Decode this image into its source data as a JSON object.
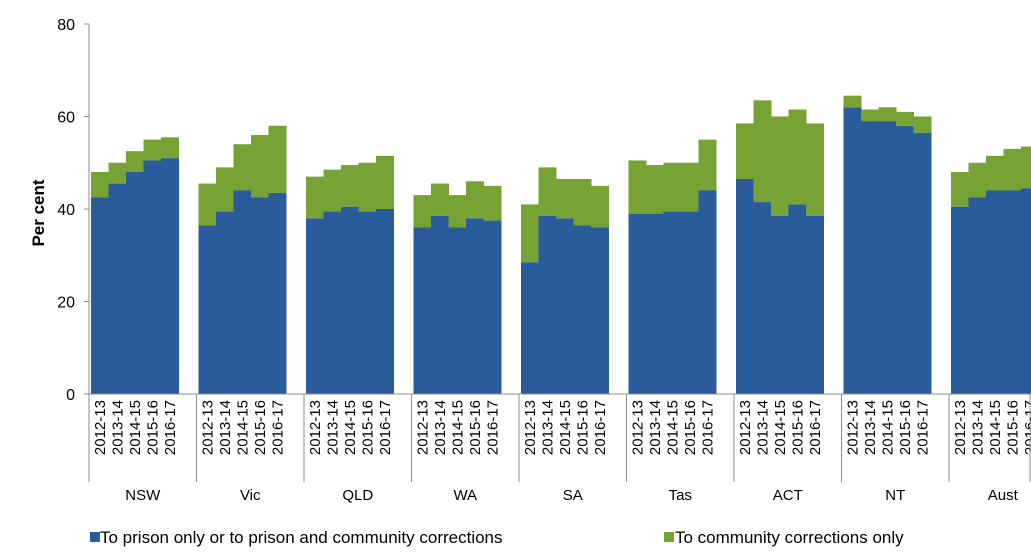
{
  "chart_data": {
    "type": "bar",
    "stacked": true,
    "ylabel": "Per cent",
    "ylim": [
      0,
      80
    ],
    "yticks": [
      0,
      20,
      40,
      60,
      80
    ],
    "grid": false,
    "legend_position": "bottom",
    "groups": [
      "NSW",
      "Vic",
      "QLD",
      "WA",
      "SA",
      "Tas",
      "ACT",
      "NT",
      "Aust"
    ],
    "categories": [
      "2012-13",
      "2013-14",
      "2014-15",
      "2015-16",
      "2016-17"
    ],
    "colors": {
      "prison": "#2a5b9b",
      "community": "#76a333"
    },
    "series": [
      {
        "name": "To prison only or to prison and community corrections",
        "color": "#2a5b9b",
        "values": [
          [
            42.5,
            45.5,
            48.0,
            50.5,
            51.0
          ],
          [
            36.5,
            39.5,
            44.0,
            42.5,
            43.5
          ],
          [
            38.0,
            39.5,
            40.5,
            39.5,
            40.0
          ],
          [
            36.0,
            38.5,
            36.0,
            38.0,
            37.5
          ],
          [
            28.5,
            38.5,
            38.0,
            36.5,
            36.0
          ],
          [
            39.0,
            39.0,
            39.5,
            39.5,
            44.0
          ],
          [
            46.5,
            41.5,
            38.5,
            41.0,
            38.5
          ],
          [
            62.0,
            59.0,
            59.0,
            58.0,
            56.5
          ],
          [
            40.5,
            42.5,
            44.0,
            44.0,
            44.5
          ]
        ]
      },
      {
        "name": "To community corrections only",
        "color": "#76a333",
        "values": [
          [
            5.5,
            4.5,
            4.5,
            4.5,
            4.5
          ],
          [
            9.0,
            9.5,
            10.0,
            13.5,
            14.5
          ],
          [
            9.0,
            9.0,
            9.0,
            10.5,
            11.5
          ],
          [
            7.0,
            7.0,
            7.0,
            8.0,
            7.5
          ],
          [
            12.5,
            10.5,
            8.5,
            10.0,
            9.0
          ],
          [
            11.5,
            10.5,
            10.5,
            10.5,
            11.0
          ],
          [
            12.0,
            22.0,
            21.5,
            20.5,
            20.0
          ],
          [
            2.5,
            2.5,
            3.0,
            3.0,
            3.5
          ],
          [
            7.5,
            7.5,
            7.5,
            9.0,
            9.0
          ]
        ]
      }
    ]
  }
}
